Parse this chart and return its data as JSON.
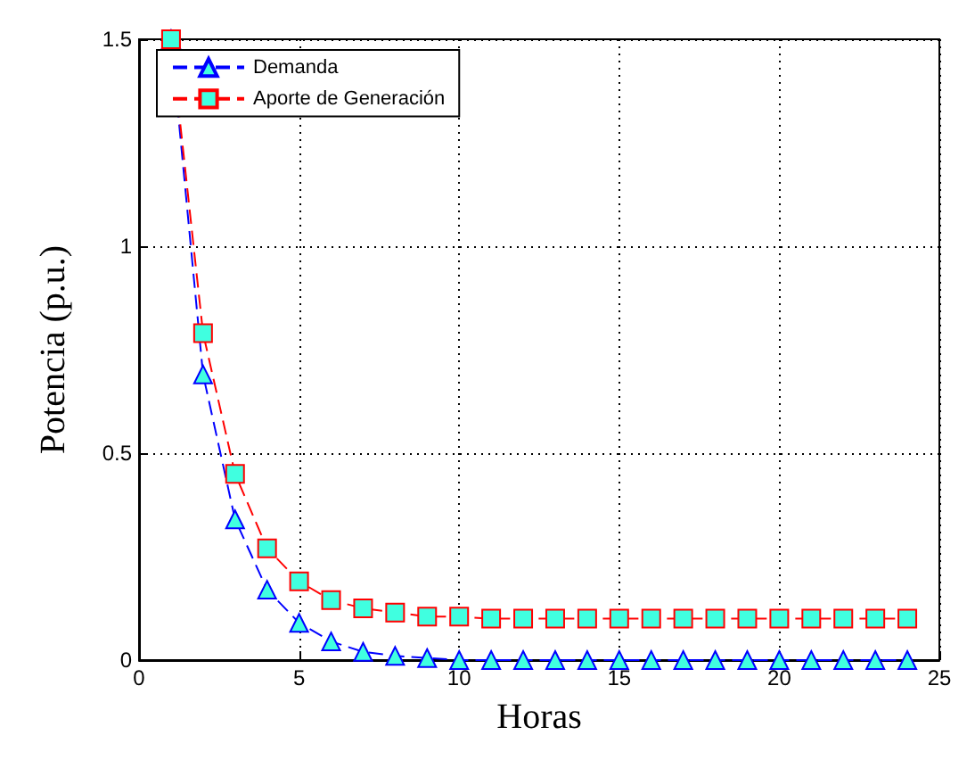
{
  "chart_data": {
    "type": "line",
    "xlabel": "Horas",
    "ylabel": "Potencia (p.u.)",
    "x": [
      1,
      2,
      3,
      4,
      5,
      6,
      7,
      8,
      9,
      10,
      11,
      12,
      13,
      14,
      15,
      16,
      17,
      18,
      19,
      20,
      21,
      22,
      23,
      24
    ],
    "series": [
      {
        "name": "Demanda",
        "color": "#0000ff",
        "marker": "triangle",
        "values": [
          1.5,
          0.69,
          0.34,
          0.17,
          0.09,
          0.045,
          0.02,
          0.01,
          0.005,
          0,
          0,
          0,
          0,
          0,
          0,
          0,
          0,
          0,
          0,
          0,
          0,
          0,
          0,
          0
        ]
      },
      {
        "name": "Aporte de Generación",
        "color": "#ff0000",
        "marker": "square",
        "values": [
          1.5,
          0.79,
          0.45,
          0.27,
          0.19,
          0.145,
          0.125,
          0.115,
          0.105,
          0.105,
          0.1,
          0.1,
          0.1,
          0.1,
          0.1,
          0.1,
          0.1,
          0.1,
          0.1,
          0.1,
          0.1,
          0.1,
          0.1,
          0.1
        ]
      }
    ],
    "xlim": [
      0,
      25
    ],
    "xticks": [
      0,
      5,
      10,
      15,
      20,
      25
    ],
    "ylim": [
      0,
      1.5
    ],
    "yticks": [
      0,
      0.5,
      1,
      1.5
    ],
    "grid": true,
    "legend": "top left",
    "line_style": "dashed"
  }
}
